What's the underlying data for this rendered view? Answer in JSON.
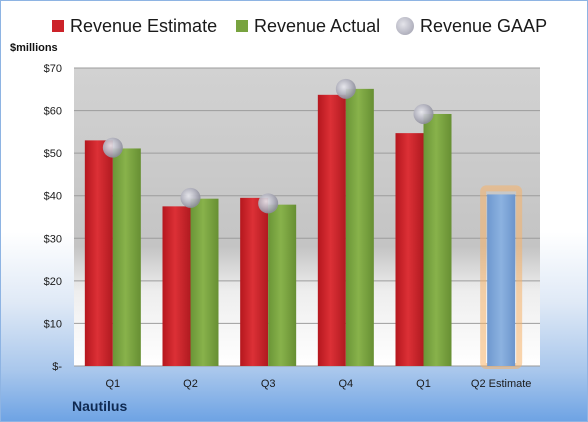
{
  "unit_label": "$millions",
  "company": "Nautilus",
  "colors": {
    "estimate": "#cc2229",
    "actual": "#78a33f",
    "gaap": "#a6a6b0",
    "q2_estimate_fill": "#7ea6d8",
    "q2_estimate_glow": "#f5b36a"
  },
  "chart_data": {
    "type": "bar",
    "categories": [
      "Q1",
      "Q2",
      "Q3",
      "Q4",
      "Q1",
      "Q2 Estimate"
    ],
    "series": [
      {
        "name": "Revenue Estimate",
        "values": [
          53,
          37.5,
          39.5,
          63.7,
          54.7,
          null
        ]
      },
      {
        "name": "Revenue Actual",
        "values": [
          51.1,
          39.3,
          37.9,
          65.1,
          59.2,
          40.3
        ]
      },
      {
        "name": "Revenue GAAP",
        "values": [
          51.3,
          39.5,
          38.2,
          65.1,
          59.2,
          null
        ]
      }
    ],
    "yticks": [
      "$-",
      "$10",
      "$20",
      "$30",
      "$40",
      "$50",
      "$60",
      "$70"
    ],
    "ylim": [
      0,
      70
    ],
    "grid": true,
    "legend": "top"
  }
}
